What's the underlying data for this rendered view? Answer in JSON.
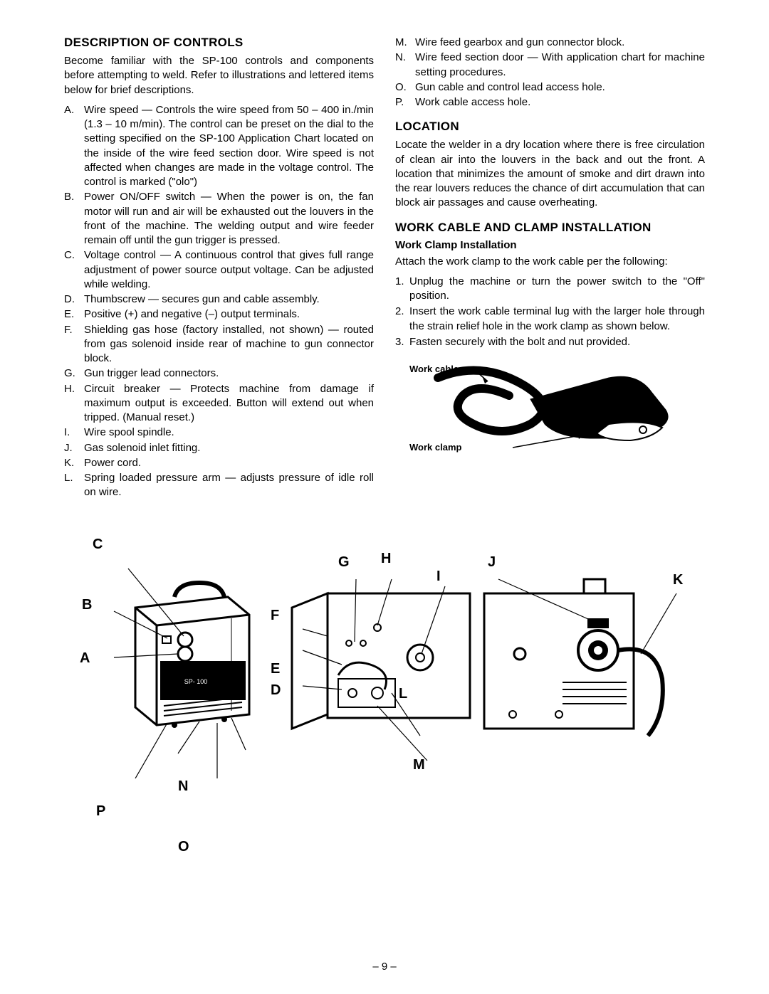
{
  "leftCol": {
    "heading1": "DESCRIPTION OF CONTROLS",
    "intro": "Become familiar with the SP-100 controls and components before attempting to weld. Refer to illustrations and lettered items below for brief descriptions.",
    "items": [
      {
        "letter": "A.",
        "text": "Wire speed — Controls the wire speed from 50 – 400 in./min (1.3 – 10 m/min). The control can be preset on the dial to the setting specified on the SP-100 Application Chart located on the inside of the wire feed section door. Wire speed is not affected when changes are made in the voltage control. The control is marked (\"olo\")"
      },
      {
        "letter": "B.",
        "text": "Power ON/OFF switch — When the power is on, the fan motor will run and air will be exhausted out the louvers in the front of the machine. The welding output and wire feeder remain off until the gun trigger is pressed."
      },
      {
        "letter": "C.",
        "text": "Voltage control — A continuous control that gives full range adjustment of power source output voltage. Can be adjusted while welding."
      },
      {
        "letter": "D.",
        "text": "Thumbscrew — secures gun and cable assembly."
      },
      {
        "letter": "E.",
        "text": "Positive (+) and negative (–) output terminals."
      },
      {
        "letter": "F.",
        "text": "Shielding gas hose (factory installed, not shown) — routed from gas solenoid inside rear of machine to gun connector block."
      },
      {
        "letter": "G.",
        "text": "Gun trigger lead connectors."
      },
      {
        "letter": "H.",
        "text": "Circuit breaker — Protects machine from damage if maximum output is exceeded. Button will extend out when tripped. (Manual reset.)"
      },
      {
        "letter": "I.",
        "text": "Wire spool spindle."
      },
      {
        "letter": "J.",
        "text": "Gas solenoid inlet fitting."
      },
      {
        "letter": "K.",
        "text": "Power cord."
      },
      {
        "letter": "L.",
        "text": "Spring loaded pressure arm — adjusts pressure of idle roll on wire."
      }
    ]
  },
  "rightCol": {
    "itemsCont": [
      {
        "letter": "M.",
        "text": "Wire feed gearbox and gun connector block."
      },
      {
        "letter": "N.",
        "text": "Wire feed section door — With application chart for machine setting procedures."
      },
      {
        "letter": "O.",
        "text": "Gun cable and control lead access hole."
      },
      {
        "letter": "P.",
        "text": "Work cable access hole."
      }
    ],
    "heading2": "LOCATION",
    "locationText": "Locate the welder in a dry location where there is free circulation of clean air into the louvers in the back and out the front. A location that minimizes the amount of smoke and dirt drawn into the rear louvers reduces the chance of dirt accumulation that can block air passages and cause overheating.",
    "heading3": "WORK CABLE AND CLAMP INSTALLATION",
    "subheading": "Work Clamp Installation",
    "clampIntro": "Attach the work clamp to the work cable per the following:",
    "steps": [
      {
        "num": "1.",
        "text": "Unplug the machine or turn the power switch to the \"Off\" position."
      },
      {
        "num": "2.",
        "text": "Insert the work cable terminal lug with the larger hole through the strain relief hole in the work clamp as shown below."
      },
      {
        "num": "3.",
        "text": "Fasten securely with the bolt and nut provided."
      }
    ],
    "diagramLabels": {
      "workCable": "Work cable",
      "workClamp": "Work clamp"
    }
  },
  "mainDiagram": {
    "labels": {
      "A": "A",
      "B": "B",
      "C": "C",
      "D": "D",
      "E": "E",
      "F": "F",
      "G": "G",
      "H": "H",
      "I": "I",
      "J": "J",
      "K": "K",
      "L": "L",
      "M": "M",
      "N": "N",
      "O": "O",
      "P": "P"
    }
  },
  "pageNumber": "– 9 –",
  "styling": {
    "background": "#ffffff",
    "text": "#000000",
    "headingFontSize": 17,
    "bodyFontSize": 15,
    "labelFontSize": 20,
    "smallLabelFontSize": 13,
    "pageWidth": 1080,
    "pageHeight": 1397
  }
}
